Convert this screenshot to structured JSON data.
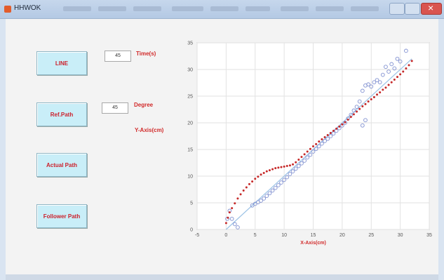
{
  "window": {
    "title": "HHWOK",
    "accent": "#b4c9e4"
  },
  "buttons": {
    "line": "LINE",
    "ref_path": "Ref.Path",
    "actual_path": "Actual Path",
    "follower_path": "Follower Path"
  },
  "inputs": {
    "time_value": "45",
    "degree_value": "45"
  },
  "labels": {
    "time": "Time(s)",
    "degree": "Degree",
    "y_axis": "Y-Axis(cm)"
  },
  "chart_data": {
    "type": "scatter",
    "xlabel": "X-Axis(cm)",
    "ylabel": "",
    "xlim": [
      -5,
      35
    ],
    "ylim": [
      0,
      35
    ],
    "xticks": [
      -5,
      0,
      5,
      10,
      15,
      20,
      25,
      30,
      35
    ],
    "yticks": [
      0,
      5,
      10,
      15,
      20,
      25,
      30,
      35
    ],
    "grid": true,
    "series": [
      {
        "kind": "line",
        "color": "#9cc3e6",
        "x": [
          0,
          32
        ],
        "y": [
          0,
          32
        ]
      },
      {
        "kind": "markers-circle",
        "color": "#7f8fd0",
        "x": [
          0.2,
          0.6,
          1.0,
          1.5,
          2.0,
          4.5,
          5.0,
          5.5,
          6.0,
          6.5,
          7.0,
          7.5,
          8.0,
          8.5,
          9.0,
          9.5,
          10.0,
          10.5,
          11.0,
          11.5,
          12.0,
          12.5,
          13.0,
          13.5,
          14.0,
          14.5,
          15.0,
          15.5,
          16.0,
          16.5,
          17.0,
          17.5,
          18.0,
          18.5,
          19.0,
          19.5,
          20.0,
          20.5,
          21.0,
          21.5,
          22.0,
          22.5,
          23.0,
          23.5,
          23.5,
          24.0,
          24.0,
          24.5,
          25.0,
          25.5,
          26.0,
          26.5,
          27.0,
          27.5,
          28.0,
          28.5,
          29.0,
          29.5,
          30.0,
          31.0
        ],
        "y": [
          2.0,
          3.5,
          2.0,
          1.0,
          0.4,
          4.5,
          4.8,
          5.1,
          5.4,
          5.8,
          6.3,
          6.8,
          7.3,
          7.8,
          8.3,
          8.8,
          9.3,
          9.8,
          10.4,
          10.9,
          11.4,
          11.9,
          12.4,
          12.9,
          13.5,
          14.0,
          14.6,
          15.1,
          15.6,
          16.1,
          16.6,
          17.0,
          17.5,
          18.0,
          18.5,
          19.0,
          19.5,
          20.0,
          20.8,
          21.5,
          22.3,
          23.0,
          24.0,
          19.5,
          26.0,
          20.5,
          27.0,
          27.2,
          26.8,
          27.6,
          28.0,
          27.6,
          29.0,
          30.5,
          29.6,
          31.0,
          30.2,
          32.0,
          31.5,
          33.5
        ]
      },
      {
        "kind": "markers-dot",
        "color": "#c62a2a",
        "x": [
          0.0,
          0.3,
          0.6,
          1.0,
          1.5,
          2.0,
          2.5,
          3.0,
          3.5,
          4.0,
          4.5,
          5.0,
          5.5,
          6.0,
          6.5,
          7.0,
          7.5,
          8.0,
          8.5,
          9.0,
          9.5,
          10.0,
          10.5,
          11.0,
          11.5,
          12.0,
          12.5,
          13.0,
          13.5,
          14.0,
          14.5,
          15.0,
          15.5,
          16.0,
          16.5,
          17.0,
          17.5,
          18.0,
          18.5,
          19.0,
          19.5,
          20.0,
          20.5,
          21.0,
          21.5,
          22.0,
          22.5,
          23.0,
          23.5,
          24.0,
          24.5,
          25.0,
          25.5,
          26.0,
          26.5,
          27.0,
          27.5,
          28.0,
          28.5,
          29.0,
          29.5,
          30.0,
          30.5,
          31.0,
          31.5,
          32.0
        ],
        "y": [
          1.2,
          2.2,
          3.2,
          4.0,
          4.9,
          5.8,
          6.6,
          7.3,
          7.9,
          8.5,
          9.0,
          9.5,
          9.9,
          10.3,
          10.6,
          10.9,
          11.1,
          11.3,
          11.5,
          11.6,
          11.7,
          11.8,
          11.9,
          12.0,
          12.2,
          12.6,
          13.1,
          13.6,
          14.1,
          14.6,
          15.1,
          15.6,
          16.0,
          16.5,
          16.9,
          17.3,
          17.7,
          18.1,
          18.5,
          18.9,
          19.3,
          19.7,
          20.1,
          20.6,
          21.1,
          21.6,
          22.1,
          22.6,
          23.1,
          23.5,
          24.0,
          24.4,
          24.8,
          25.3,
          25.7,
          26.2,
          26.6,
          27.1,
          27.6,
          28.1,
          28.6,
          29.1,
          29.6,
          30.2,
          30.8,
          31.6
        ]
      }
    ]
  }
}
